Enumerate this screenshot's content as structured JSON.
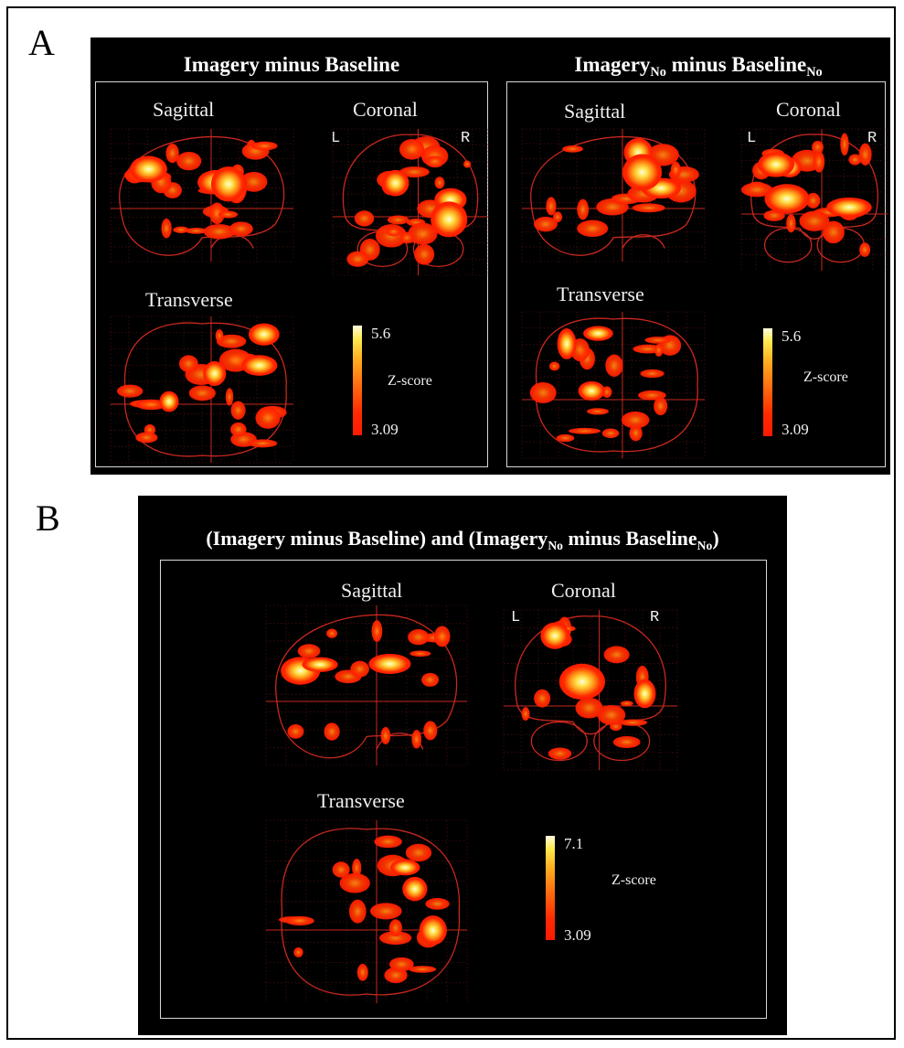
{
  "figure": {
    "panel_a": {
      "letter": "A",
      "left": {
        "title_main": "Imagery minus Baseline",
        "views": {
          "sagittal": "Sagittal",
          "coronal": "Coronal",
          "transverse": "Transverse"
        },
        "side_left": "L",
        "side_right": "R",
        "scale": {
          "max": "5.6",
          "min": "3.09",
          "label": "Z-score"
        }
      },
      "right": {
        "title_a": "Imagery",
        "sub_a": "No",
        "title_b": " minus Baseline",
        "sub_b": "No",
        "views": {
          "sagittal": "Sagittal",
          "coronal": "Coronal",
          "transverse": "Transverse"
        },
        "side_left": "L",
        "side_right": "R",
        "scale": {
          "max": "5.6",
          "min": "3.09",
          "label": "Z-score"
        }
      }
    },
    "panel_b": {
      "letter": "B",
      "title_a": "(Imagery minus Baseline) and (Imagery",
      "sub_a": "No",
      "title_b": " minus Baseline",
      "sub_b": "No",
      "title_c": ")",
      "views": {
        "sagittal": "Sagittal",
        "coronal": "Coronal",
        "transverse": "Transverse"
      },
      "side_left": "L",
      "side_right": "R",
      "scale": {
        "max": "7.1",
        "min": "3.09",
        "label": "Z-score"
      }
    },
    "colors": {
      "panel_bg": "#000000",
      "outline": "#c8281e",
      "hot_low": "#ff1a00",
      "hot_high": "#fffbe0"
    }
  }
}
